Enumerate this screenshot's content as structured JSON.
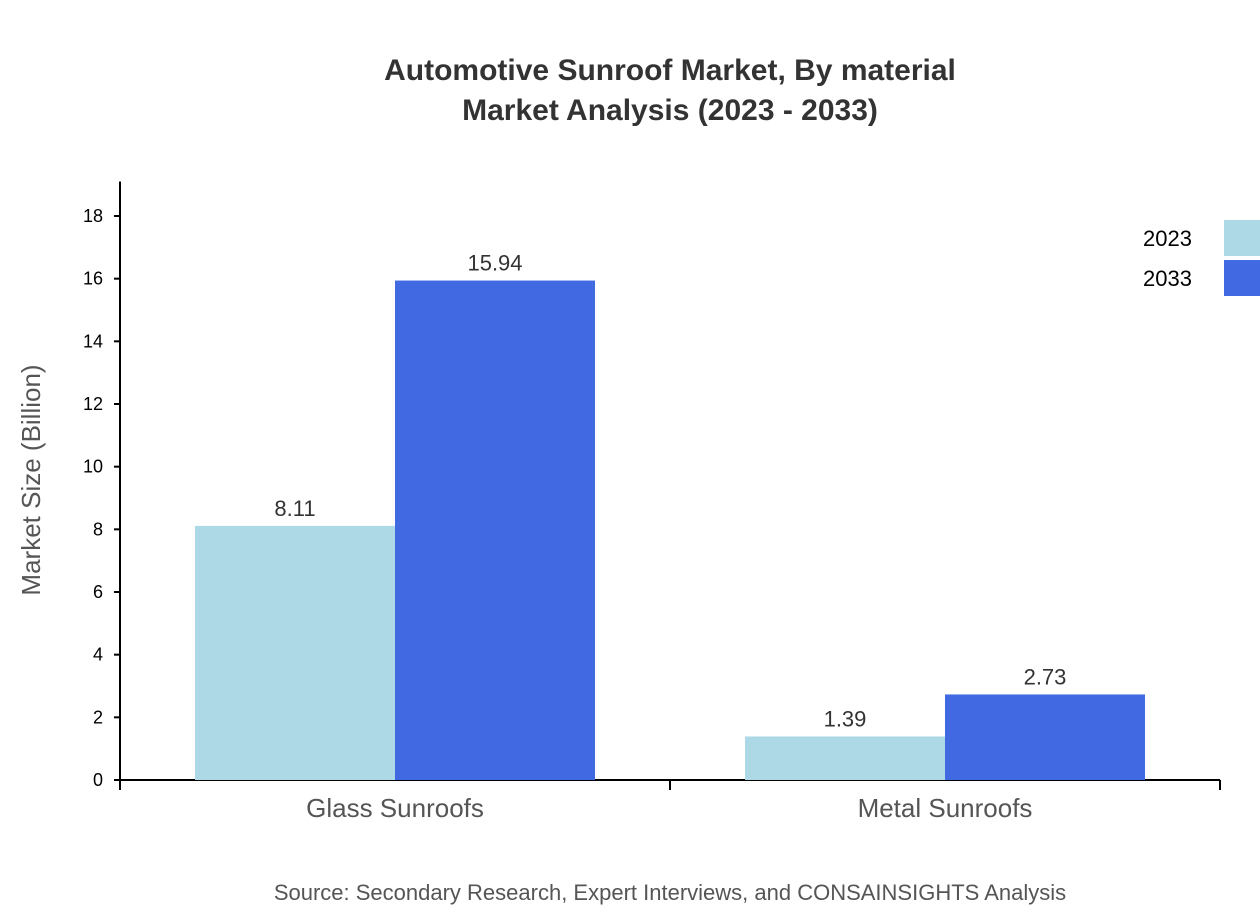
{
  "chart_data": {
    "type": "bar",
    "title": "Automotive Sunroof Market, By material",
    "subtitle": "Market Analysis (2023 - 2033)",
    "xlabel": "",
    "ylabel": "Market Size (Billion)",
    "categories": [
      "Glass Sunroofs",
      "Metal Sunroofs"
    ],
    "series": [
      {
        "name": "2023",
        "color": "#ADD8E6",
        "values": [
          8.11,
          1.39
        ]
      },
      {
        "name": "2033",
        "color": "#4169E1",
        "values": [
          15.94,
          2.73
        ]
      }
    ],
    "ylim": [
      0,
      19.1
    ],
    "yticks": [
      0,
      2,
      4,
      6,
      8,
      10,
      12,
      14,
      16,
      18
    ],
    "grid": false,
    "legend": "top-right",
    "source": "Source: Secondary Research, Expert Interviews, and CONSAINSIGHTS Analysis"
  }
}
